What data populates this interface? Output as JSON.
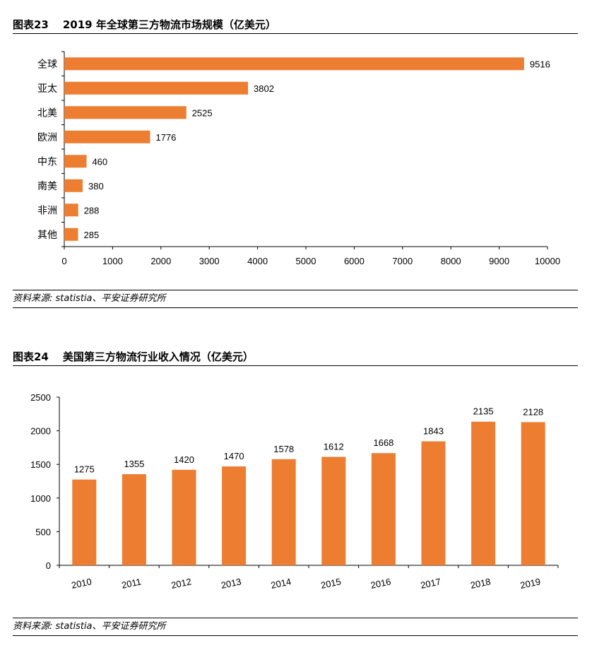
{
  "figures": [
    {
      "number": "图表23",
      "title": "2019 年全球第三方物流市场规模（亿美元）",
      "source": "资料来源: statistia、平安证券研究所"
    },
    {
      "number": "图表24",
      "title": "美国第三方物流行业收入情况（亿美元）",
      "source": "资料来源: statistia、平安证券研究所"
    }
  ],
  "colors": {
    "bar": "#ED7D31",
    "axis": "#000000",
    "text": "#000000"
  },
  "chart_data": [
    {
      "type": "bar",
      "orientation": "horizontal",
      "title": "2019 年全球第三方物流市场规模（亿美元）",
      "categories": [
        "全球",
        "亚太",
        "北美",
        "欧洲",
        "中东",
        "南美",
        "非洲",
        "其他"
      ],
      "values": [
        9516,
        3802,
        2525,
        1776,
        460,
        380,
        288,
        285
      ],
      "xlim": [
        0,
        10000
      ],
      "xticks": [
        0,
        1000,
        2000,
        3000,
        4000,
        5000,
        6000,
        7000,
        8000,
        9000,
        10000
      ],
      "data_labels": true,
      "grid": false,
      "legend": "none"
    },
    {
      "type": "bar",
      "orientation": "vertical",
      "title": "美国第三方物流行业收入情况（亿美元）",
      "categories": [
        "2010",
        "2011",
        "2012",
        "2013",
        "2014",
        "2015",
        "2016",
        "2017",
        "2018",
        "2019"
      ],
      "values": [
        1275,
        1355,
        1420,
        1470,
        1578,
        1612,
        1668,
        1843,
        2135,
        2128
      ],
      "ylim": [
        0,
        2500
      ],
      "yticks": [
        0,
        500,
        1000,
        1500,
        2000,
        2500
      ],
      "data_labels": true,
      "grid": false,
      "legend": "none"
    }
  ]
}
